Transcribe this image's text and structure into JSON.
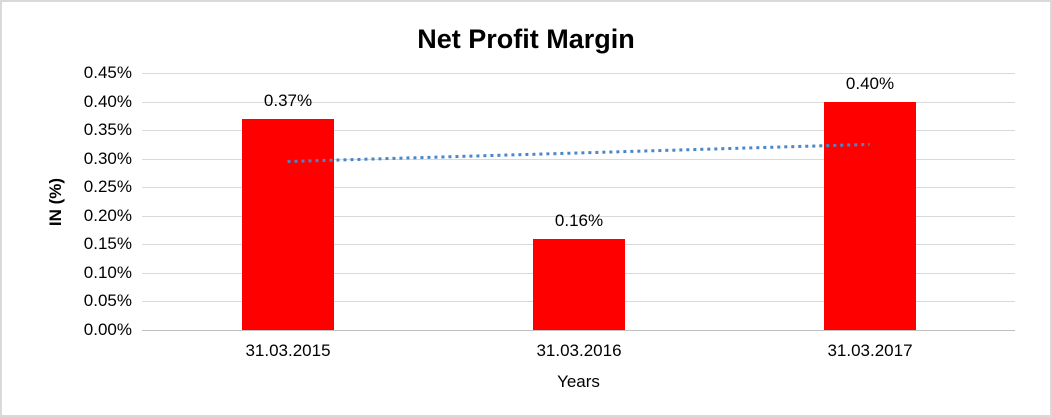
{
  "chart_data": {
    "type": "bar",
    "title": "Net Profit Margin",
    "xlabel": "Years",
    "ylabel": "IN (%)",
    "categories": [
      "31.03.2015",
      "31.03.2016",
      "31.03.2017"
    ],
    "values": [
      0.37,
      0.16,
      0.4
    ],
    "data_labels": [
      "0.37%",
      "0.16%",
      "0.40%"
    ],
    "ylim": [
      0,
      0.45
    ],
    "y_tick_step": 0.05,
    "y_ticks": [
      "0.00%",
      "0.05%",
      "0.10%",
      "0.15%",
      "0.20%",
      "0.25%",
      "0.30%",
      "0.35%",
      "0.40%",
      "0.45%"
    ],
    "grid": true,
    "legend": "none",
    "bar_color": "#FF0000",
    "trendline": {
      "type": "linear",
      "style": "dotted",
      "color": "#4A86C8",
      "start_value": 0.295,
      "end_value": 0.325
    }
  },
  "colors": {
    "background": "#FFFFFF",
    "border": "#D9D9D9",
    "gridline": "#D9D9D9",
    "axis_line": "#BFBFBF",
    "text": "#000000"
  }
}
